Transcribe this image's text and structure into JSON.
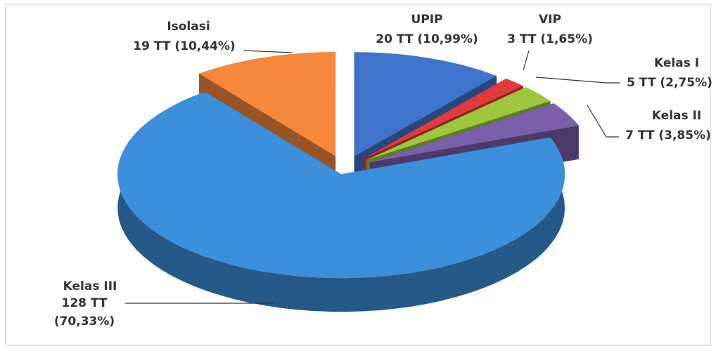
{
  "chart_data": {
    "type": "pie",
    "categories": [
      "UPIP",
      "VIP",
      "Kelas I",
      "Kelas II",
      "Kelas III",
      "Isolasi"
    ],
    "values": [
      20,
      3,
      5,
      7,
      128,
      19
    ],
    "value_labels": [
      "20 TT (10,99%)",
      "3 TT (1,65%)",
      "5 TT (2,75%)",
      "7 TT (3,85%)",
      "128 TT (70,33%)",
      "19 TT (10,44%)"
    ],
    "colors": [
      "#3f74cc",
      "#e23b3b",
      "#9cc63c",
      "#7a5fab",
      "#3c8fdb",
      "#f6883c"
    ]
  }
}
